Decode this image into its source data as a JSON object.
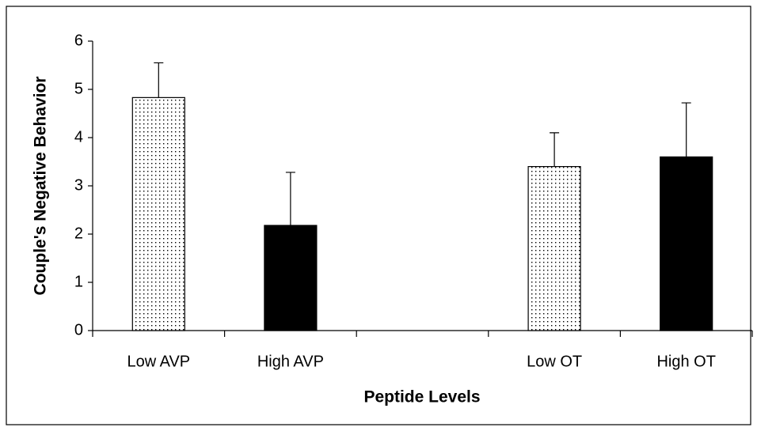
{
  "chart_data": {
    "type": "bar",
    "ylabel": "Couple's Negative Behavior",
    "xlabel": "Peptide Levels",
    "categories": [
      "Low AVP",
      "High AVP",
      null,
      "Low OT",
      "High OT"
    ],
    "values": [
      4.83,
      2.18,
      null,
      3.4,
      3.6
    ],
    "errors": [
      0.72,
      1.1,
      null,
      0.7,
      1.12
    ],
    "bar_fills": [
      "dotted",
      "black",
      null,
      "dotted",
      "black"
    ],
    "ylim": [
      0,
      6
    ],
    "yticks": [
      0,
      1,
      2,
      3,
      4,
      5,
      6
    ],
    "grid": false
  }
}
